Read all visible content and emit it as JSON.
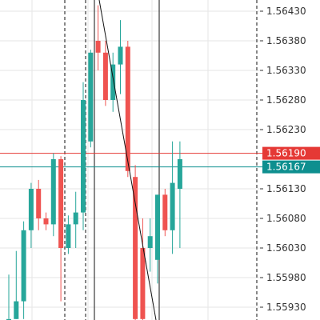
{
  "chart_data": {
    "type": "candlestick",
    "y_axis_ticks": [
      "1.56430",
      "1.56380",
      "1.56330",
      "1.56280",
      "1.56230",
      "1.56130",
      "1.56080",
      "1.56030",
      "1.55980",
      "1.55930"
    ],
    "y_axis_tick_values": [
      1.5643,
      1.5638,
      1.5633,
      1.5628,
      1.5623,
      1.5613,
      1.5608,
      1.5603,
      1.5598,
      1.5593
    ],
    "ylim": [
      1.5591,
      1.5645
    ],
    "grid": true,
    "price_lines": [
      {
        "label": "1.56190",
        "value": 1.5619,
        "color": "#e53935"
      },
      {
        "label": "1.56167",
        "value": 1.56167,
        "color": "#0e8f8f"
      }
    ],
    "colors": {
      "up": "#26a69a",
      "down": "#ef5350",
      "axis_text": "#333333",
      "grid": "#e6e6e6"
    },
    "candles": [
      {
        "o": 1.5591,
        "h": 1.55985,
        "l": 1.5591,
        "c": 1.5591
      },
      {
        "o": 1.5591,
        "h": 1.56025,
        "l": 1.5591,
        "c": 1.5594
      },
      {
        "o": 1.5594,
        "h": 1.56075,
        "l": 1.5591,
        "c": 1.5606
      },
      {
        "o": 1.5606,
        "h": 1.5614,
        "l": 1.5603,
        "c": 1.5613
      },
      {
        "o": 1.5613,
        "h": 1.56145,
        "l": 1.5606,
        "c": 1.5608
      },
      {
        "o": 1.5608,
        "h": 1.5609,
        "l": 1.5606,
        "c": 1.5607
      },
      {
        "o": 1.5607,
        "h": 1.5619,
        "l": 1.5605,
        "c": 1.5618
      },
      {
        "o": 1.5618,
        "h": 1.56185,
        "l": 1.5594,
        "c": 1.5603
      },
      {
        "o": 1.5603,
        "h": 1.56085,
        "l": 1.5602,
        "c": 1.5607
      },
      {
        "o": 1.5607,
        "h": 1.56125,
        "l": 1.5603,
        "c": 1.5609
      },
      {
        "o": 1.5609,
        "h": 1.5631,
        "l": 1.5606,
        "c": 1.5628
      },
      {
        "o": 1.5621,
        "h": 1.56365,
        "l": 1.562,
        "c": 1.5636
      },
      {
        "o": 1.5638,
        "h": 1.5644,
        "l": 1.5633,
        "c": 1.5636
      },
      {
        "o": 1.5636,
        "h": 1.5638,
        "l": 1.5627,
        "c": 1.5628
      },
      {
        "o": 1.5628,
        "h": 1.5636,
        "l": 1.5626,
        "c": 1.5634
      },
      {
        "o": 1.5634,
        "h": 1.56415,
        "l": 1.5629,
        "c": 1.5637
      },
      {
        "o": 1.5637,
        "h": 1.5638,
        "l": 1.5615,
        "c": 1.5616
      },
      {
        "o": 1.5615,
        "h": 1.5617,
        "l": 1.5589,
        "c": 1.5591
      },
      {
        "o": 1.5603,
        "h": 1.5608,
        "l": 1.5589,
        "c": 1.5591
      },
      {
        "o": 1.5603,
        "h": 1.5608,
        "l": 1.5599,
        "c": 1.5605
      },
      {
        "o": 1.5601,
        "h": 1.5612,
        "l": 1.5597,
        "c": 1.5612
      },
      {
        "o": 1.5612,
        "h": 1.5613,
        "l": 1.5605,
        "c": 1.5606
      },
      {
        "o": 1.5606,
        "h": 1.5621,
        "l": 1.5602,
        "c": 1.5614
      },
      {
        "o": 1.5613,
        "h": 1.5621,
        "l": 1.5603,
        "c": 1.5618
      }
    ]
  }
}
